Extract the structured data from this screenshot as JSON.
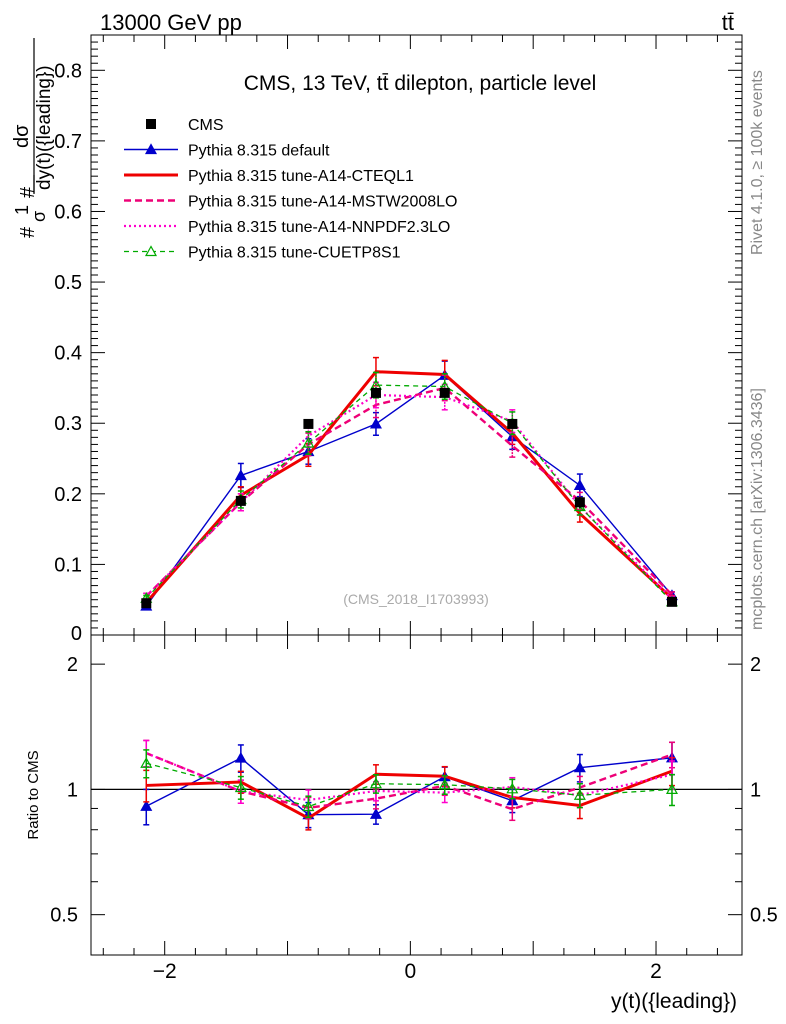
{
  "header": {
    "energy_label": "13000 GeV pp",
    "process_label": "tt̄"
  },
  "side": {
    "rivet_label": "Rivet 4.1.0, ≥ 100k events",
    "mcplots_label": "mcplots.cern.ch [arXiv:1306.3436]"
  },
  "chart_data": {
    "type": "line",
    "title": "CMS, 13 TeV, tt̄ dilepton, particle level",
    "watermark": "(CMS_2018_I1703993)",
    "xlabel": "y(t)({leading})",
    "ylabel": "#frac{1}{#sigma}#frac{d#sigma}{dy(t)({leading})}",
    "ylabel_parts": {
      "top": "dσ",
      "bottom": "dy(t)({leading})",
      "one": "1",
      "sigma": "σ",
      "hash1": "#",
      "hash2": "#"
    },
    "ratio_ylabel": "Ratio to CMS",
    "xlim": [
      -2.6,
      2.7
    ],
    "ylim": [
      0,
      0.85
    ],
    "ratio_ylim": [
      0.4,
      2.35
    ],
    "x_ticks": [
      -2,
      0,
      2
    ],
    "x_tick_labels": [
      "−2",
      "0",
      "2"
    ],
    "y_ticks": [
      0.1,
      0.2,
      0.3,
      0.4,
      0.5,
      0.6,
      0.7,
      0.8
    ],
    "y_tick_labels": [
      "0.1",
      "0.2",
      "0.3",
      "0.4",
      "0.5",
      "0.6",
      "0.7",
      "0.8"
    ],
    "y_zero_label": "0",
    "ratio_ticks": [
      0.5,
      1,
      2
    ],
    "ratio_tick_labels": [
      "0.5",
      "1",
      "2"
    ],
    "x": [
      -2.15,
      -1.38,
      -0.83,
      -0.28,
      0.28,
      0.83,
      1.38,
      2.13
    ],
    "x_edges": [
      -2.6,
      -1.65,
      -1.1,
      -0.55,
      0,
      0.55,
      1.1,
      1.65,
      2.6
    ],
    "data": {
      "name": "CMS",
      "values": [
        0.045,
        0.19,
        0.299,
        0.343,
        0.343,
        0.299,
        0.188,
        0.047
      ],
      "errors": [
        0.003,
        0.008,
        0.006,
        0.006,
        0.006,
        0.006,
        0.008,
        0.003
      ]
    },
    "series": [
      {
        "name": "Pythia 8.315 default",
        "color": "#0000cc",
        "style": "solid",
        "width": 1.4,
        "marker": "triangle-filled",
        "values": [
          0.041,
          0.226,
          0.26,
          0.299,
          0.368,
          0.281,
          0.212,
          0.056
        ],
        "errors": [
          0.004,
          0.017,
          0.018,
          0.016,
          0.02,
          0.018,
          0.016,
          0.005
        ]
      },
      {
        "name": "Pythia 8.315 tune-A14-CTEQL1",
        "color": "#ee0000",
        "style": "solid",
        "width": 3,
        "marker": "none",
        "values": [
          0.046,
          0.198,
          0.255,
          0.373,
          0.369,
          0.286,
          0.172,
          0.052
        ],
        "errors": [
          0.004,
          0.012,
          0.016,
          0.02,
          0.02,
          0.016,
          0.012,
          0.004
        ]
      },
      {
        "name": "Pythia 8.315 tune-A14-MSTW2008LO",
        "color": "#ee0077",
        "style": "dashed",
        "width": 2.4,
        "marker": "none",
        "values": [
          0.055,
          0.188,
          0.27,
          0.326,
          0.35,
          0.268,
          0.19,
          0.057
        ],
        "errors": [
          0.004,
          0.012,
          0.016,
          0.018,
          0.018,
          0.016,
          0.012,
          0.004
        ]
      },
      {
        "name": "Pythia 8.315 tune-A14-NNPDF2.3LO",
        "color": "#ff00cc",
        "style": "dotted",
        "width": 2.2,
        "marker": "none",
        "values": [
          0.055,
          0.188,
          0.282,
          0.34,
          0.337,
          0.303,
          0.182,
          0.051
        ],
        "errors": [
          0.004,
          0.012,
          0.016,
          0.018,
          0.018,
          0.016,
          0.012,
          0.004
        ]
      },
      {
        "name": "Pythia 8.315 tune-CUETP8S1",
        "color": "#00aa00",
        "style": "dashed-fine",
        "width": 1.3,
        "marker": "triangle-open",
        "values": [
          0.052,
          0.192,
          0.272,
          0.354,
          0.352,
          0.3,
          0.182,
          0.047
        ],
        "errors": [
          0.004,
          0.012,
          0.016,
          0.018,
          0.018,
          0.016,
          0.012,
          0.004
        ]
      }
    ]
  }
}
